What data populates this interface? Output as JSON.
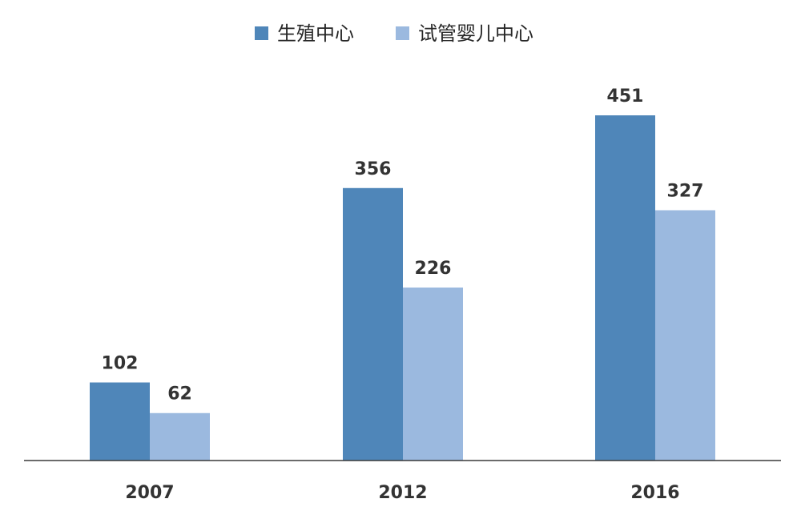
{
  "chart_data": {
    "type": "bar",
    "title": "",
    "xlabel": "",
    "ylabel": "",
    "categories": [
      "2007",
      "2012",
      "2016"
    ],
    "series": [
      {
        "name": "生殖中心",
        "values": [
          102,
          356,
          451
        ],
        "color": "#4F86B9"
      },
      {
        "name": "试管婴儿中心",
        "values": [
          62,
          226,
          327
        ],
        "color": "#9BB9DF"
      }
    ],
    "ylim": [
      0,
      500
    ],
    "grid": false,
    "legend_position": "top-center",
    "data_labels": true
  }
}
